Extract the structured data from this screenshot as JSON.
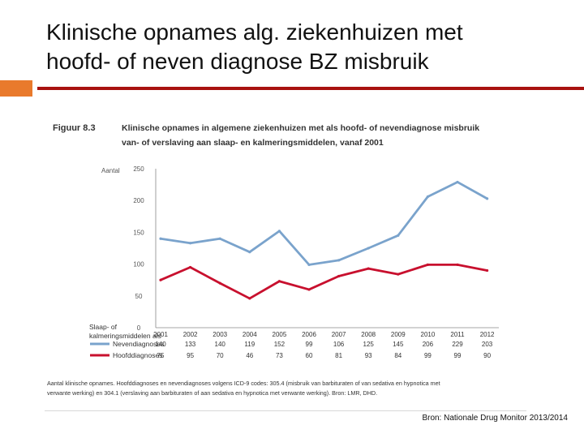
{
  "slide": {
    "title_line1": "Klinische opnames alg. ziekenhuizen met",
    "title_line2": "hoofd- of neven diagnose  BZ misbruik",
    "source": "Bron: Nationale Drug Monitor 2013/2014",
    "accent_orange": "#e97a2c",
    "accent_red": "#a8110f"
  },
  "figure": {
    "label": "Figuur 8.3",
    "title_line1": "Klinische opnames in algemene ziekenhuizen met als hoofd- of nevendiagnose misbruik",
    "title_line2": "van- of verslaving aan slaap- en kalmeringsmiddelen, vanaf 2001",
    "footnote_line1": "Aantal klinische opnames. Hoofddiagnoses en nevendiagnoses volgens ICD-9 codes: 305.4 (misbruik van barbituraten of van sedativa en hypnotica met",
    "footnote_line2": "verwante werking) en 304.1 (verslaving aan barbituraten of aan sedativa en hypnotica met verwante werking). Bron: LMR, DHD."
  },
  "chart_data": {
    "type": "line",
    "ylabel": "Aantal",
    "xlabel_line1": "Slaap- of",
    "xlabel_line2": "kalmeringsmiddelen als",
    "ylim": [
      0,
      250
    ],
    "yticks": [
      0,
      50,
      100,
      150,
      200,
      250
    ],
    "x": [
      "2001",
      "2002",
      "2003",
      "2004",
      "2005",
      "2006",
      "2007",
      "2008",
      "2009",
      "2010",
      "2011",
      "2012"
    ],
    "grid": false,
    "legend": "table below chart",
    "series": [
      {
        "name": "Nevendiagnoses",
        "color": "#7aa3cc",
        "values": [
          140,
          133,
          140,
          119,
          152,
          99,
          106,
          125,
          145,
          206,
          229,
          203
        ]
      },
      {
        "name": "Hoofddiagnoses",
        "color": "#c8102e",
        "values": [
          75,
          95,
          70,
          46,
          73,
          60,
          81,
          93,
          84,
          99,
          99,
          90
        ]
      }
    ]
  }
}
